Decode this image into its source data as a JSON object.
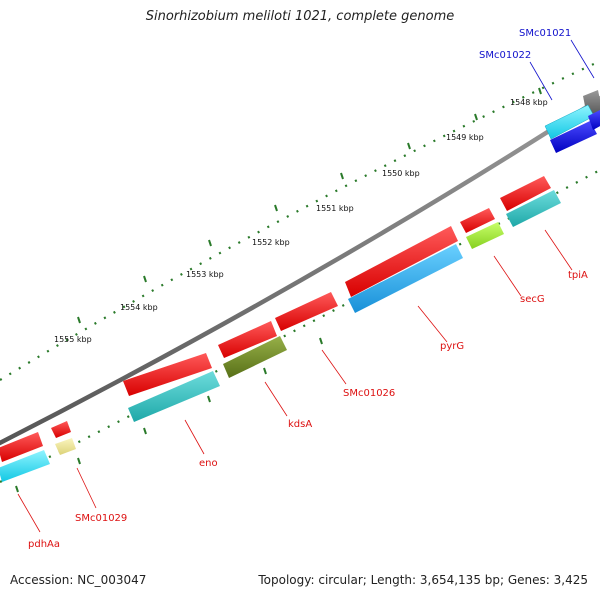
{
  "title": "Sinorhizobium meliloti 1021, complete genome",
  "footer": {
    "accession": "Accession: NC_003047",
    "summary": "Topology: circular; Length: 3,654,135 bp; Genes: 3,425"
  },
  "colors": {
    "red": "#ee1111",
    "cyan": "#22d8ee",
    "teal": "#2ab8b8",
    "skyblue": "#1ea8e8",
    "olive": "#6e8a24",
    "lime": "#a6e83a",
    "khaki": "#ece59a",
    "blue": "#0a0ae0",
    "gray": "#7a7a7a",
    "tick_green": "#2a7a2a",
    "label_red": "#dd1111",
    "label_blue": "#1111cc"
  },
  "ticks": [
    {
      "label": "1548 kbp"
    },
    {
      "label": "1549 kbp"
    },
    {
      "label": "1550 kbp"
    },
    {
      "label": "1551 kbp"
    },
    {
      "label": "1552 kbp"
    },
    {
      "label": "1553 kbp"
    },
    {
      "label": "1554 kbp"
    },
    {
      "label": "1555 kbp"
    }
  ],
  "genes": [
    {
      "name": "SMc01021",
      "color": "blue"
    },
    {
      "name": "SMc01022",
      "color": "blue"
    },
    {
      "name": "tpiA",
      "color": "red"
    },
    {
      "name": "secG",
      "color": "red"
    },
    {
      "name": "pyrG",
      "color": "red"
    },
    {
      "name": "SMc01026",
      "color": "red"
    },
    {
      "name": "kdsA",
      "color": "red"
    },
    {
      "name": "eno",
      "color": "red"
    },
    {
      "name": "SMc01029",
      "color": "red"
    },
    {
      "name": "pdhAa",
      "color": "red"
    }
  ]
}
